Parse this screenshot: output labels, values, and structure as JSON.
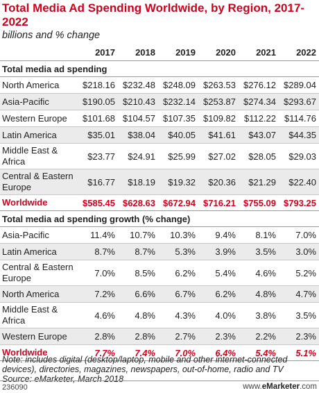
{
  "title": "Total Media Ad Spending Worldwide, by Region, 2017-2022",
  "subtitle": "billions and % change",
  "note": "Note: includes digital (desktop/laptop, mobile and other internet-connected devices), directories, magazines, newspapers, out-of-home, radio and TV",
  "source": "Source: eMarketer, March 2018",
  "chart_id": "236090",
  "brand_prefix": "www.",
  "brand_main": "eMarketer",
  "brand_suffix": ".com",
  "colors": {
    "accent": "#d0021b",
    "shade": "#ebebeb"
  },
  "chart_data": {
    "type": "table",
    "title": "Total Media Ad Spending Worldwide, by Region, 2017-2022",
    "subtitle": "billions and % change",
    "columns": [
      "",
      "2017",
      "2018",
      "2019",
      "2020",
      "2021",
      "2022"
    ],
    "sections": [
      {
        "heading": "Total media ad spending",
        "rows": [
          {
            "label": "North America",
            "values": [
              "$218.16",
              "$232.48",
              "$248.09",
              "$263.53",
              "$276.12",
              "$289.04"
            ]
          },
          {
            "label": "Asia-Pacific",
            "values": [
              "$190.05",
              "$210.43",
              "$232.14",
              "$253.87",
              "$274.34",
              "$293.67"
            ]
          },
          {
            "label": "Western Europe",
            "values": [
              "$101.68",
              "$104.57",
              "$107.35",
              "$109.82",
              "$112.22",
              "$114.76"
            ]
          },
          {
            "label": "Latin America",
            "values": [
              "$35.01",
              "$38.04",
              "$40.05",
              "$41.61",
              "$43.07",
              "$44.35"
            ]
          },
          {
            "label": "Middle East & Africa",
            "values": [
              "$23.77",
              "$24.91",
              "$25.99",
              "$27.02",
              "$28.05",
              "$29.03"
            ]
          },
          {
            "label": "Central & Eastern Europe",
            "values": [
              "$16.77",
              "$18.19",
              "$19.32",
              "$20.36",
              "$21.29",
              "$22.40"
            ]
          }
        ],
        "total": {
          "label": "Worldwide",
          "values": [
            "$585.45",
            "$628.63",
            "$672.94",
            "$716.21",
            "$755.09",
            "$793.25"
          ]
        }
      },
      {
        "heading": "Total media ad spending growth (% change)",
        "rows": [
          {
            "label": "Asia-Pacific",
            "values": [
              "11.4%",
              "10.7%",
              "10.3%",
              "9.4%",
              "8.1%",
              "7.0%"
            ]
          },
          {
            "label": "Latin America",
            "values": [
              "8.7%",
              "8.7%",
              "5.3%",
              "3.9%",
              "3.5%",
              "3.0%"
            ]
          },
          {
            "label": "Central & Eastern Europe",
            "values": [
              "7.0%",
              "8.5%",
              "6.2%",
              "5.4%",
              "4.6%",
              "5.2%"
            ]
          },
          {
            "label": "North America",
            "values": [
              "7.2%",
              "6.6%",
              "6.7%",
              "6.2%",
              "4.8%",
              "4.7%"
            ]
          },
          {
            "label": "Middle East & Africa",
            "values": [
              "4.6%",
              "4.8%",
              "4.3%",
              "4.0%",
              "3.8%",
              "3.5%"
            ]
          },
          {
            "label": "Western Europe",
            "values": [
              "2.8%",
              "2.8%",
              "2.7%",
              "2.3%",
              "2.2%",
              "2.3%"
            ]
          }
        ],
        "total": {
          "label": "Worldwide",
          "values": [
            "7.7%",
            "7.4%",
            "7.0%",
            "6.4%",
            "5.4%",
            "5.1%"
          ]
        }
      }
    ]
  }
}
